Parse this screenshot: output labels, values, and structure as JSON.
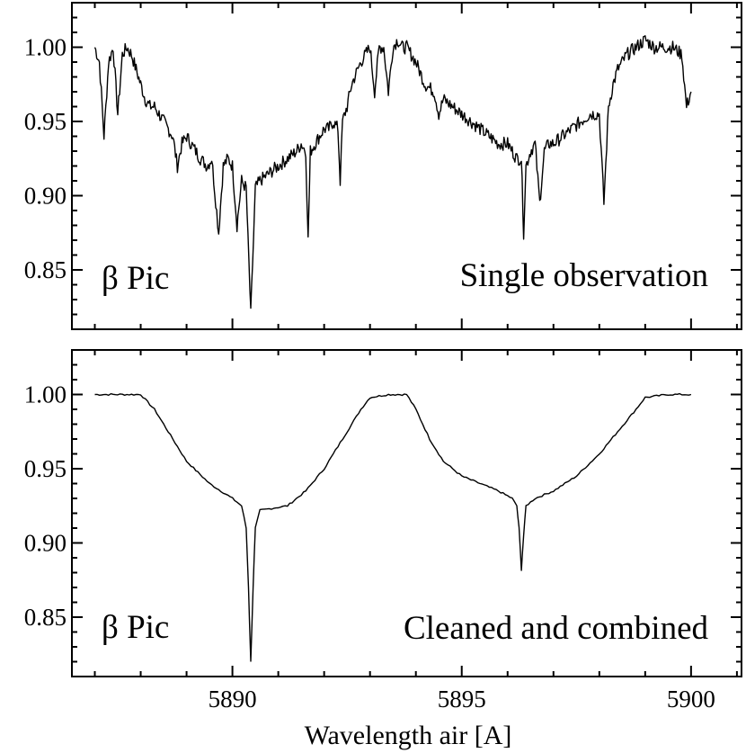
{
  "chart_data": [
    {
      "type": "line",
      "panel": "top",
      "title": "",
      "xlabel": "",
      "ylabel": "",
      "xlim": [
        5886.5,
        5901.1
      ],
      "ylim": [
        0.81,
        1.03
      ],
      "yticks": [
        0.85,
        0.9,
        0.95,
        1.0
      ],
      "ytick_labels": [
        "0.85",
        "0.90",
        "0.95",
        "1.00"
      ],
      "xticks": [
        5890,
        5895,
        5900
      ],
      "xtick_labels": [
        "",
        "",
        ""
      ],
      "annotations": {
        "star": "β Pic",
        "label": "Single observation"
      },
      "series": [
        {
          "name": "Single observation",
          "x": [
            5887.0,
            5887.1,
            5887.2,
            5887.3,
            5887.4,
            5887.5,
            5887.6,
            5887.7,
            5887.8,
            5887.9,
            5888.0,
            5888.1,
            5888.2,
            5888.3,
            5888.4,
            5888.5,
            5888.6,
            5888.7,
            5888.8,
            5888.9,
            5889.0,
            5889.1,
            5889.2,
            5889.3,
            5889.45,
            5889.55,
            5889.7,
            5889.8,
            5889.9,
            5890.0,
            5890.1,
            5890.2,
            5890.3,
            5890.4,
            5890.5,
            5890.6,
            5890.8,
            5891.0,
            5891.2,
            5891.4,
            5891.5,
            5891.6,
            5891.65,
            5891.7,
            5891.8,
            5891.9,
            5892.0,
            5892.1,
            5892.2,
            5892.3,
            5892.35,
            5892.4,
            5892.5,
            5892.6,
            5892.8,
            5893.0,
            5893.1,
            5893.2,
            5893.3,
            5893.4,
            5893.5,
            5893.6,
            5893.7,
            5893.8,
            5894.0,
            5894.2,
            5894.4,
            5894.5,
            5894.6,
            5894.8,
            5895.0,
            5895.2,
            5895.4,
            5895.6,
            5895.8,
            5896.0,
            5896.1,
            5896.2,
            5896.3,
            5896.35,
            5896.4,
            5896.5,
            5896.6,
            5896.7,
            5896.8,
            5896.9,
            5897.0,
            5897.2,
            5897.4,
            5897.6,
            5897.8,
            5898.0,
            5898.1,
            5898.2,
            5898.3,
            5898.4,
            5898.6,
            5898.8,
            5899.0,
            5899.2,
            5899.4,
            5899.6,
            5899.8,
            5899.9,
            5900.0
          ],
          "y": [
            1.0,
            0.99,
            0.94,
            0.99,
            1.0,
            0.955,
            0.995,
            1.0,
            0.995,
            0.985,
            0.975,
            0.965,
            0.96,
            0.96,
            0.955,
            0.95,
            0.945,
            0.94,
            0.92,
            0.935,
            0.94,
            0.935,
            0.93,
            0.925,
            0.92,
            0.925,
            0.875,
            0.92,
            0.925,
            0.92,
            0.88,
            0.91,
            0.905,
            0.82,
            0.905,
            0.91,
            0.915,
            0.92,
            0.925,
            0.93,
            0.935,
            0.93,
            0.87,
            0.93,
            0.935,
            0.94,
            0.945,
            0.945,
            0.95,
            0.945,
            0.91,
            0.95,
            0.96,
            0.975,
            0.99,
            1.0,
            0.97,
            1.0,
            1.0,
            0.97,
            1.0,
            1.005,
            1.0,
            1.0,
            0.99,
            0.975,
            0.97,
            0.955,
            0.965,
            0.96,
            0.955,
            0.95,
            0.945,
            0.94,
            0.935,
            0.935,
            0.93,
            0.925,
            0.925,
            0.875,
            0.92,
            0.93,
            0.935,
            0.895,
            0.93,
            0.935,
            0.935,
            0.94,
            0.945,
            0.95,
            0.955,
            0.955,
            0.895,
            0.96,
            0.975,
            0.985,
            0.995,
            1.0,
            1.005,
            1.0,
            1.0,
            1.0,
            0.995,
            0.96,
            0.97
          ]
        }
      ]
    },
    {
      "type": "line",
      "panel": "bottom",
      "title": "",
      "xlabel": "Wavelength air [A]",
      "ylabel": "",
      "xlim": [
        5886.5,
        5901.1
      ],
      "ylim": [
        0.81,
        1.03
      ],
      "yticks": [
        0.85,
        0.9,
        0.95,
        1.0
      ],
      "ytick_labels": [
        "0.85",
        "0.90",
        "0.95",
        "1.00"
      ],
      "xticks": [
        5890,
        5895,
        5900
      ],
      "xtick_labels": [
        "5890",
        "5895",
        "5900"
      ],
      "annotations": {
        "star": "β Pic",
        "label": "Cleaned and combined"
      },
      "series": [
        {
          "name": "Cleaned and combined",
          "x": [
            5887.0,
            5887.5,
            5888.0,
            5888.3,
            5888.6,
            5889.0,
            5889.5,
            5890.0,
            5890.2,
            5890.3,
            5890.35,
            5890.4,
            5890.45,
            5890.5,
            5890.6,
            5890.8,
            5891.2,
            5891.6,
            5892.0,
            5892.4,
            5892.8,
            5893.0,
            5893.4,
            5893.8,
            5894.0,
            5894.3,
            5894.6,
            5895.0,
            5895.4,
            5895.8,
            5896.1,
            5896.2,
            5896.25,
            5896.3,
            5896.35,
            5896.4,
            5896.6,
            5897.0,
            5897.5,
            5898.0,
            5898.4,
            5898.8,
            5899.0,
            5899.5,
            5900.0
          ],
          "y": [
            1.0,
            1.0,
            1.0,
            0.99,
            0.975,
            0.955,
            0.94,
            0.93,
            0.925,
            0.91,
            0.87,
            0.82,
            0.87,
            0.91,
            0.922,
            0.923,
            0.925,
            0.935,
            0.95,
            0.97,
            0.99,
            0.998,
            1.0,
            1.0,
            0.99,
            0.97,
            0.955,
            0.945,
            0.94,
            0.935,
            0.93,
            0.925,
            0.91,
            0.882,
            0.905,
            0.925,
            0.93,
            0.935,
            0.945,
            0.96,
            0.975,
            0.99,
            0.998,
            1.0,
            1.0
          ]
        }
      ]
    }
  ]
}
